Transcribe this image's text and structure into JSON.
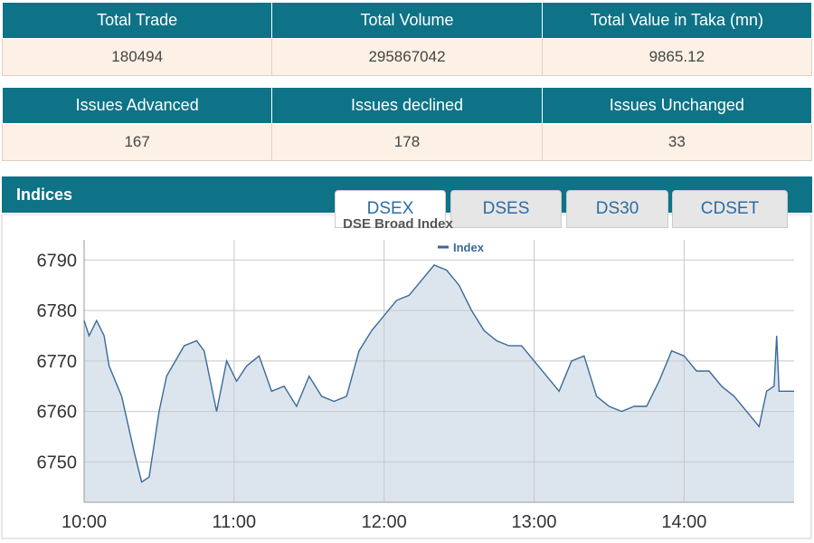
{
  "tables": [
    {
      "headers": [
        "Total Trade",
        "Total Volume",
        "Total Value in Taka (mn)"
      ],
      "rows": [
        [
          "180494",
          "295867042",
          "9865.12"
        ]
      ]
    },
    {
      "headers": [
        "Issues Advanced",
        "Issues declined",
        "Issues Unchanged"
      ],
      "rows": [
        [
          "167",
          "178",
          "33"
        ]
      ]
    }
  ],
  "panel": {
    "title": "Indices",
    "tabs": [
      "DSEX",
      "DSES",
      "DS30",
      "CDSET"
    ]
  },
  "chart_data": {
    "type": "line",
    "title": "DSE Broad Index",
    "x": [
      600,
      602,
      605,
      608,
      610,
      615,
      620,
      623,
      626,
      630,
      633,
      640,
      645,
      648,
      653,
      657,
      661,
      665,
      670,
      675,
      680,
      685,
      690,
      695,
      700,
      705,
      710,
      715,
      720,
      725,
      730,
      735,
      740,
      745,
      750,
      755,
      760,
      765,
      770,
      775,
      780,
      785,
      790,
      795,
      800,
      805,
      810,
      815,
      820,
      825,
      830,
      835,
      840,
      845,
      850,
      855,
      860,
      865,
      870,
      873,
      876,
      877,
      878,
      880,
      884
    ],
    "series": [
      {
        "name": "Index",
        "color": "#3a6a9a",
        "values": [
          6778,
          6775,
          6778,
          6775,
          6769,
          6763,
          6752,
          6746,
          6747,
          6760,
          6767,
          6773,
          6774,
          6772,
          6760,
          6770,
          6766,
          6769,
          6771,
          6764,
          6765,
          6761,
          6767,
          6763,
          6762,
          6763,
          6772,
          6776,
          6779,
          6782,
          6783,
          6786,
          6789,
          6788,
          6785,
          6780,
          6776,
          6774,
          6773,
          6773,
          6770,
          6767,
          6764,
          6770,
          6771,
          6763,
          6761,
          6760,
          6761,
          6761,
          6766,
          6772,
          6771,
          6768,
          6768,
          6765,
          6763,
          6760,
          6757,
          6764,
          6765,
          6775,
          6764,
          6764,
          6764
        ]
      }
    ],
    "xlim": [
      600,
      884
    ],
    "xticks": [
      {
        "value": 600,
        "label": "10:00"
      },
      {
        "value": 660,
        "label": "11:00"
      },
      {
        "value": 720,
        "label": "12:00"
      },
      {
        "value": 780,
        "label": "13:00"
      },
      {
        "value": 840,
        "label": "14:00"
      }
    ],
    "ylim": [
      6742,
      6794
    ],
    "yticks": [
      6750,
      6760,
      6770,
      6780,
      6790
    ],
    "grid": true,
    "area_color": "#dce5ee"
  }
}
